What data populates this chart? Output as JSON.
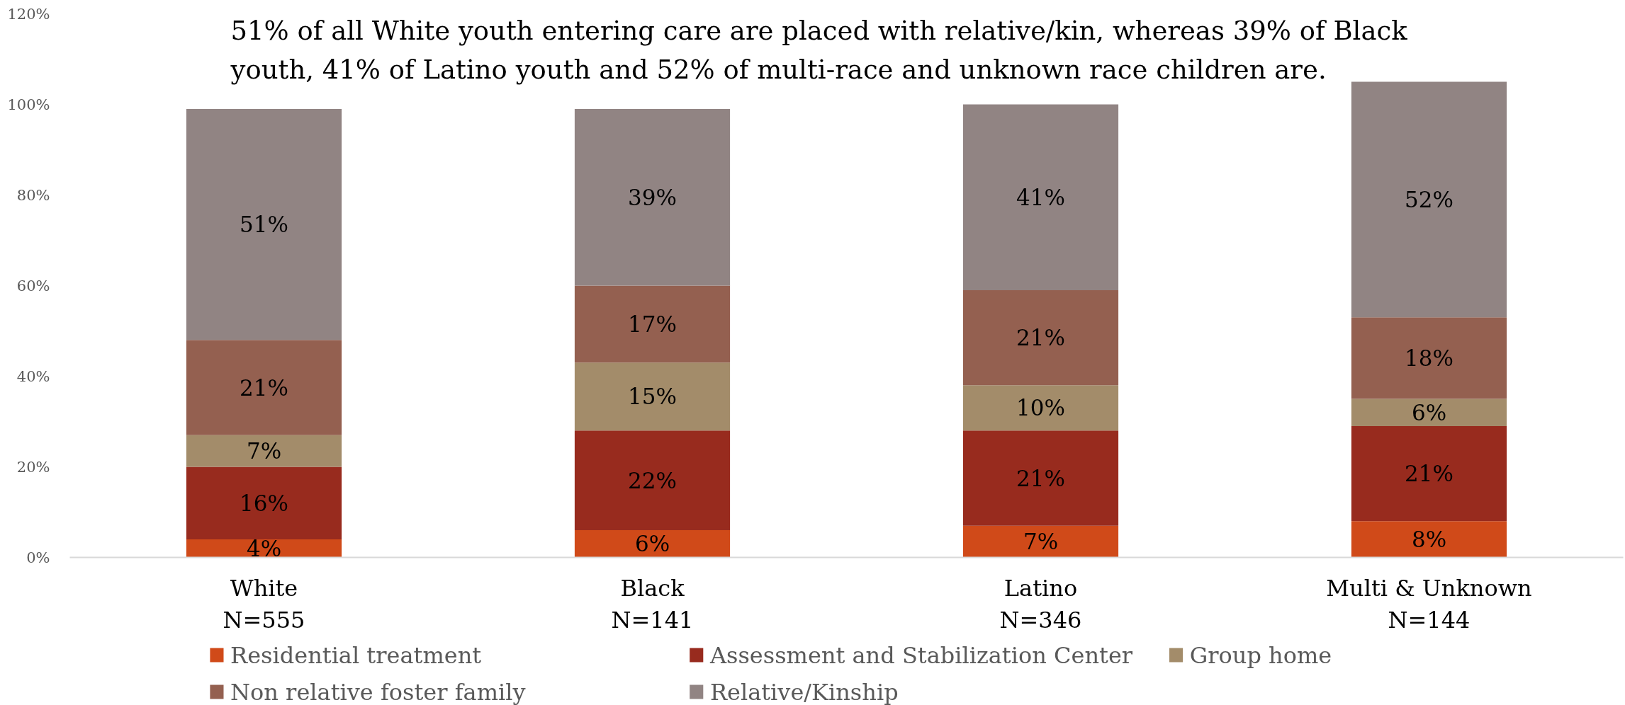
{
  "chart_data": {
    "type": "bar",
    "stacked": true,
    "title": "51% of all White youth entering care are placed with relative/kin, whereas 39% of Black\nyouth, 41% of Latino youth and 52% of multi-race and unknown race children are.",
    "categories": [
      "White\nN=555",
      "Black\nN=141",
      "Latino\nN=346",
      "Multi & Unknown\nN=144"
    ],
    "series": [
      {
        "name": "Residential treatment",
        "color": "#d04a19",
        "values": [
          4,
          6,
          7,
          8
        ],
        "value_labels": [
          "4%",
          "6%",
          "7%",
          "8%"
        ]
      },
      {
        "name": "Assessment and Stabilization Center",
        "color": "#982b1e",
        "values": [
          16,
          22,
          21,
          21
        ],
        "value_labels": [
          "16%",
          "22%",
          "21%",
          "21%"
        ]
      },
      {
        "name": "Group home",
        "color": "#a38c6a",
        "values": [
          7,
          15,
          10,
          6
        ],
        "value_labels": [
          "7%",
          "15%",
          "10%",
          "6%"
        ]
      },
      {
        "name": "Non relative foster family",
        "color": "#946050",
        "values": [
          21,
          17,
          21,
          18
        ],
        "value_labels": [
          "21%",
          "17%",
          "21%",
          "18%"
        ]
      },
      {
        "name": "Relative/Kinship",
        "color": "#918483",
        "values": [
          51,
          39,
          41,
          52
        ],
        "value_labels": [
          "51%",
          "39%",
          "41%",
          "52%"
        ]
      }
    ],
    "ylim": [
      0,
      120
    ],
    "yticks": [
      {
        "value": 0,
        "label": "0%"
      },
      {
        "value": 20,
        "label": "20%"
      },
      {
        "value": 40,
        "label": "40%"
      },
      {
        "value": 60,
        "label": "60%"
      },
      {
        "value": 80,
        "label": "80%"
      },
      {
        "value": 100,
        "label": "100%"
      },
      {
        "value": 120,
        "label": "120%"
      }
    ],
    "grid": false,
    "legend": "bottom"
  }
}
